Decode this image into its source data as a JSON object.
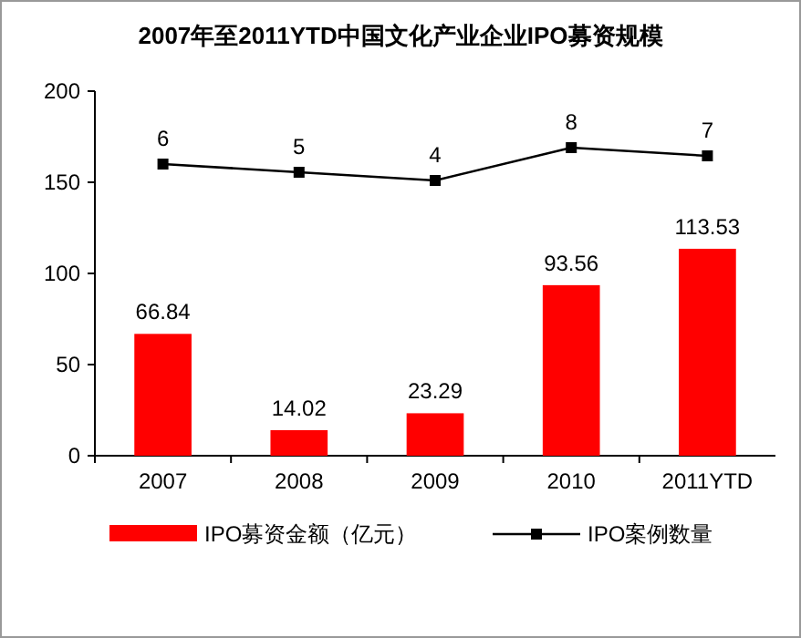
{
  "chart_data": {
    "type": "bar",
    "title": "2007年至2011YTD中国文化产业企业IPO募资规模",
    "categories": [
      "2007",
      "2008",
      "2009",
      "2010",
      "2011YTD"
    ],
    "series": [
      {
        "name": "IPO募资金额（亿元）",
        "color": "#ff0000",
        "values": [
          66.84,
          14.02,
          23.29,
          93.56,
          113.53
        ]
      },
      {
        "name": "IPO案例数量",
        "color": "#000000",
        "type": "line",
        "axis": "y2",
        "values": [
          6,
          5,
          4,
          8,
          7
        ]
      }
    ],
    "ylim": [
      0,
      200
    ],
    "yticks": [
      0,
      50,
      100,
      150,
      200
    ],
    "y2lim": [
      -29.56,
      14.89
    ],
    "data_labels": true,
    "legend": "bottom",
    "marker": "square",
    "grid": false
  }
}
